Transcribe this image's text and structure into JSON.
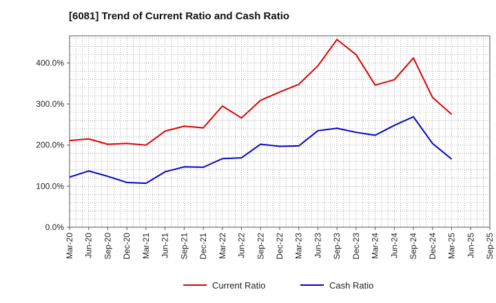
{
  "chart_data": {
    "type": "line",
    "title": "[6081]  Trend of Current Ratio and Cash Ratio",
    "xlabel": "",
    "ylabel": "",
    "ylim": [
      0,
      466
    ],
    "yticks": [
      0,
      100,
      200,
      300,
      400
    ],
    "ytick_labels": [
      "0.0%",
      "100.0%",
      "200.0%",
      "300.0%",
      "400.0%"
    ],
    "grid": true,
    "legend_position": "bottom-center",
    "x": [
      "Mar-20",
      "Jun-20",
      "Sep-20",
      "Dec-20",
      "Mar-21",
      "Jun-21",
      "Sep-21",
      "Dec-21",
      "Mar-22",
      "Jun-22",
      "Sep-22",
      "Dec-22",
      "Mar-23",
      "Jun-23",
      "Sep-23",
      "Dec-23",
      "Mar-24",
      "Jun-24",
      "Sep-24",
      "Dec-24",
      "Mar-25",
      "Jun-25",
      "Sep-25"
    ],
    "series": [
      {
        "name": "Current Ratio",
        "color": "#dd0000",
        "values": [
          211,
          215,
          202,
          204,
          200,
          234,
          246,
          242,
          295,
          266,
          309,
          329,
          348,
          393,
          457,
          420,
          346,
          359,
          412,
          316,
          275,
          null,
          null
        ]
      },
      {
        "name": "Cash Ratio",
        "color": "#0000cc",
        "values": [
          122,
          137,
          124,
          109,
          107,
          135,
          147,
          146,
          167,
          169,
          202,
          197,
          198,
          235,
          241,
          231,
          224,
          248,
          269,
          204,
          166,
          null,
          null
        ]
      }
    ]
  }
}
